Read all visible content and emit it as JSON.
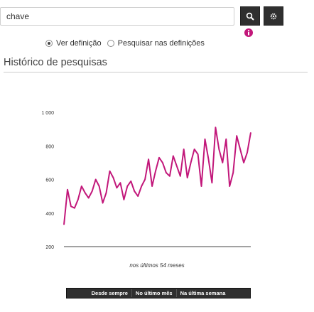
{
  "search": {
    "value": "chave"
  },
  "toolbar": {
    "search_icon": "magnifier-icon",
    "settings_icon": "gear-icon"
  },
  "info_badge": {
    "icon": "info-icon",
    "color": "#c2177a"
  },
  "radio_options": [
    {
      "label": "Ver definição",
      "checked": true
    },
    {
      "label": "Pesquisar nas definições",
      "checked": false
    }
  ],
  "history": {
    "title": "Histórico de pesquisas",
    "caption": "nos últimos 54 meses"
  },
  "chart_data": {
    "type": "line",
    "ylim": [
      200,
      1000
    ],
    "yticks": [
      "200",
      "400",
      "600",
      "800",
      "1 000"
    ],
    "ytick_values": [
      200,
      400,
      600,
      800,
      1000
    ],
    "line_color": "#c2177a",
    "series": [
      {
        "values": [
          330,
          540,
          440,
          430,
          480,
          560,
          520,
          490,
          530,
          600,
          560,
          460,
          520,
          650,
          610,
          550,
          580,
          480,
          560,
          590,
          530,
          500,
          560,
          600,
          720,
          560,
          650,
          730,
          700,
          640,
          620,
          740,
          680,
          620,
          780,
          610,
          700,
          780,
          750,
          560,
          840,
          720,
          580,
          910,
          780,
          700,
          840,
          560,
          640,
          860,
          780,
          700,
          760,
          880
        ]
      }
    ]
  },
  "range_tabs": [
    "Desde sempre",
    "No último mês",
    "Na última semana"
  ],
  "colors": {
    "accent": "#c2177a",
    "dark_button": "#2f2f2f"
  }
}
